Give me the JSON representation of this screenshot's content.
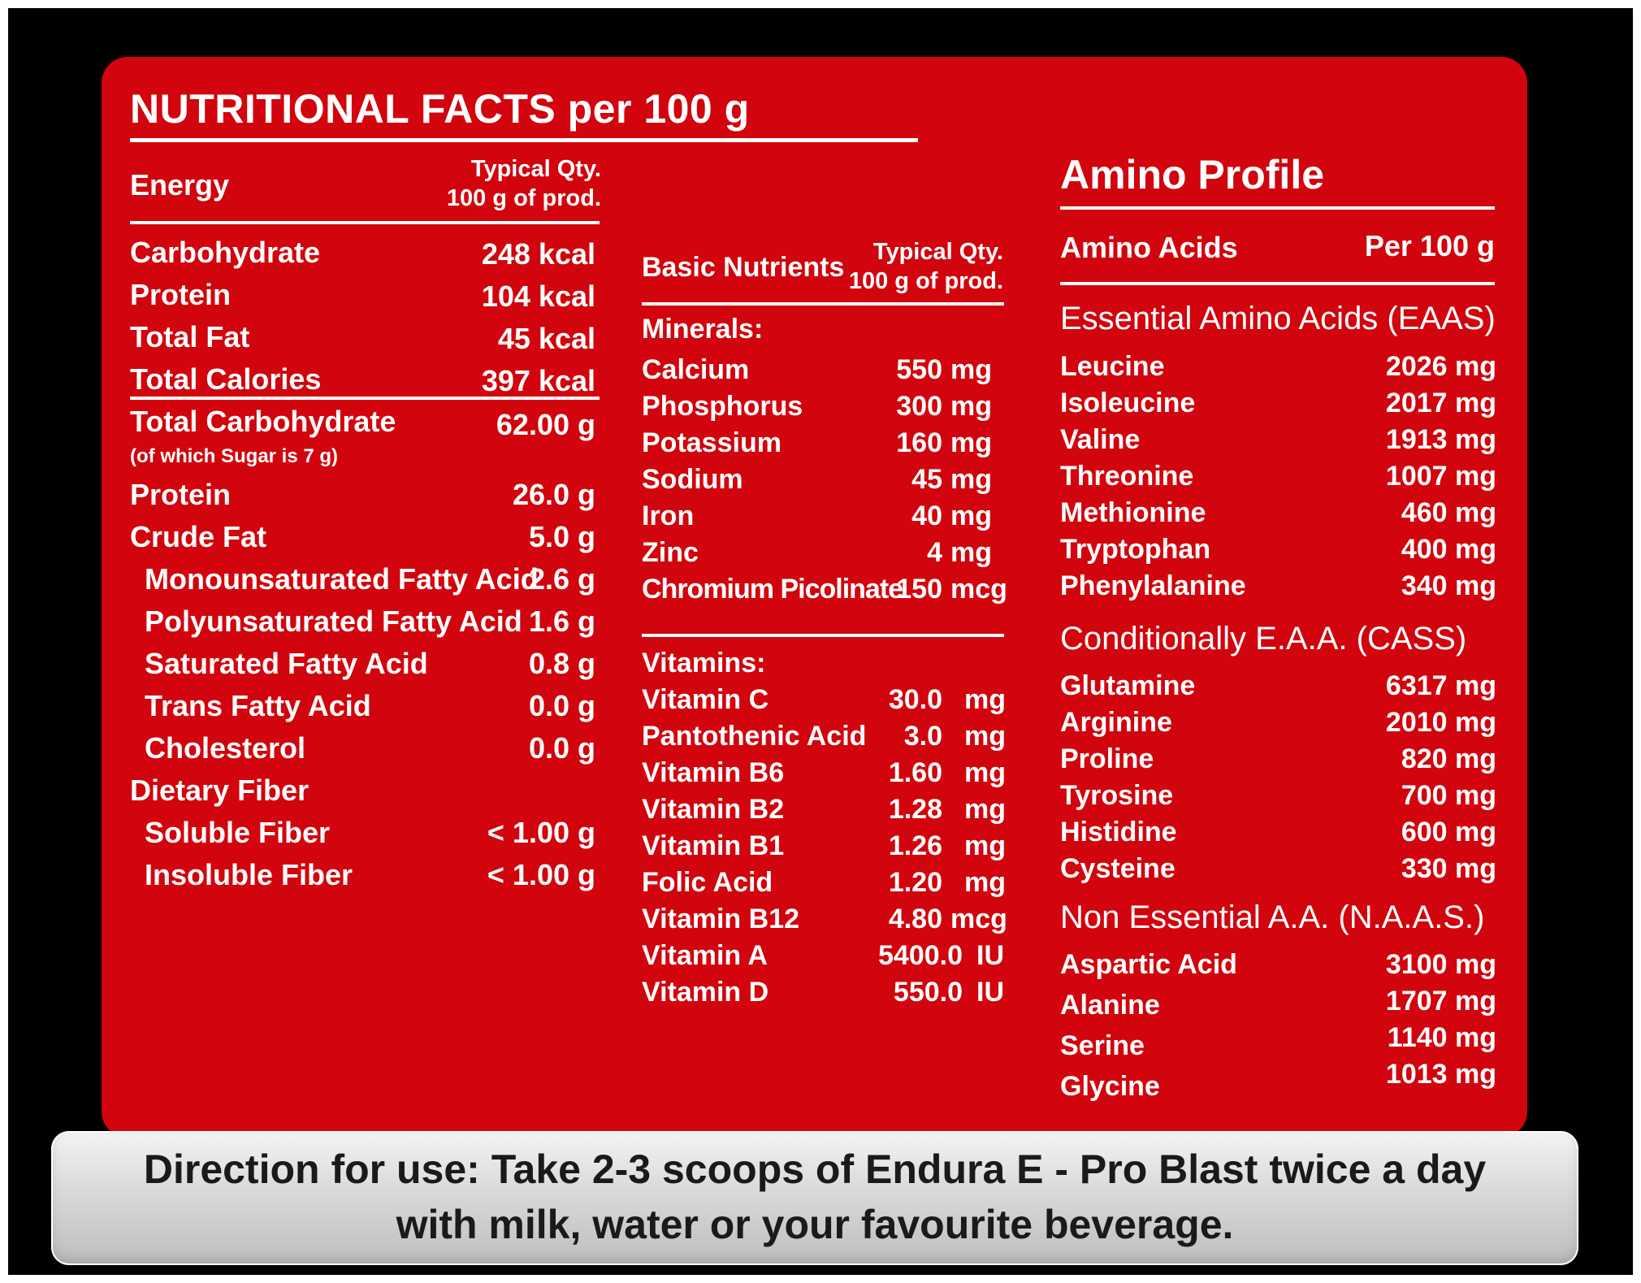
{
  "title": "NUTRITIONAL FACTS per 100 g",
  "col1": {
    "header_label": "Energy",
    "header_qty_line1": "Typical Qty.",
    "header_qty_line2": "100 g of prod.",
    "energy": [
      {
        "label": "Carbohydrate",
        "value": "248 kcal"
      },
      {
        "label": "Protein",
        "value": "104 kcal"
      },
      {
        "label": "Total Fat",
        "value": "45 kcal"
      },
      {
        "label": "Total Calories",
        "value": "397 kcal"
      }
    ],
    "total_carb_label": "Total Carbohydrate",
    "total_carb_value": "62.00 g",
    "sugar_note": "(of which Sugar is 7 g)",
    "rows": [
      {
        "label": "Protein",
        "value": "26.0 g"
      },
      {
        "label": "Crude Fat",
        "value": "5.0 g"
      },
      {
        "label": "Monounsaturated Fatty Acid",
        "value": "2.6 g"
      },
      {
        "label": "Polyunsaturated Fatty Acid",
        "value": "1.6 g"
      },
      {
        "label": "Saturated Fatty Acid",
        "value": "0.8 g"
      },
      {
        "label": "Trans Fatty Acid",
        "value": "0.0 g"
      },
      {
        "label": "Cholesterol",
        "value": "0.0 g"
      },
      {
        "label": "Dietary Fiber",
        "value": ""
      },
      {
        "label": "Soluble Fiber",
        "value": "< 1.00 g"
      },
      {
        "label": "Insoluble Fiber",
        "value": "< 1.00 g"
      }
    ]
  },
  "col2": {
    "header_label": "Basic Nutrients",
    "header_qty_line1": "Typical Qty.",
    "header_qty_line2": "100 g of prod.",
    "minerals_label": "Minerals:",
    "minerals": [
      {
        "label": "Calcium",
        "value": "550",
        "unit": "mg"
      },
      {
        "label": "Phosphorus",
        "value": "300",
        "unit": "mg"
      },
      {
        "label": "Potassium",
        "value": "160",
        "unit": "mg"
      },
      {
        "label": "Sodium",
        "value": "45",
        "unit": "mg"
      },
      {
        "label": "Iron",
        "value": "40",
        "unit": "mg"
      },
      {
        "label": "Zinc",
        "value": "4",
        "unit": "mg"
      },
      {
        "label": "Chromium Picolinate",
        "value": "150",
        "unit": "mcg"
      }
    ],
    "vitamins_label": "Vitamins:",
    "vitamins": [
      {
        "label": "Vitamin C",
        "value": "30.0",
        "unit": "mg"
      },
      {
        "label": "Pantothenic Acid",
        "value": "3.0",
        "unit": "mg"
      },
      {
        "label": "Vitamin B6",
        "value": "1.60",
        "unit": "mg"
      },
      {
        "label": "Vitamin B2",
        "value": "1.28",
        "unit": "mg"
      },
      {
        "label": "Vitamin B1",
        "value": "1.26",
        "unit": "mg"
      },
      {
        "label": "Folic Acid",
        "value": "1.20",
        "unit": "mg"
      },
      {
        "label": "Vitamin B12",
        "value": "4.80",
        "unit": "mcg"
      },
      {
        "label": "Vitamin A",
        "value": "5400.0",
        "unit": "IU"
      },
      {
        "label": "Vitamin D",
        "value": "550.0",
        "unit": "IU"
      }
    ]
  },
  "col3": {
    "heading": "Amino Profile",
    "header_label": "Amino Acids",
    "header_qty": "Per 100 g",
    "eaas_label": "Essential Amino Acids (EAAS)",
    "eaas": [
      {
        "label": "Leucine",
        "value": "2026 mg"
      },
      {
        "label": "Isoleucine",
        "value": "2017 mg"
      },
      {
        "label": "Valine",
        "value": "1913 mg"
      },
      {
        "label": "Threonine",
        "value": "1007 mg"
      },
      {
        "label": "Methionine",
        "value": "460 mg"
      },
      {
        "label": "Tryptophan",
        "value": "400 mg"
      },
      {
        "label": "Phenylalanine",
        "value": "340 mg"
      }
    ],
    "cass_label": "Conditionally E.A.A. (CASS)",
    "cass": [
      {
        "label": "Glutamine",
        "value": "6317 mg"
      },
      {
        "label": "Arginine",
        "value": "2010 mg"
      },
      {
        "label": "Proline",
        "value": "820 mg"
      },
      {
        "label": "Tyrosine",
        "value": "700 mg"
      },
      {
        "label": "Histidine",
        "value": "600 mg"
      },
      {
        "label": "Cysteine",
        "value": "330 mg"
      }
    ],
    "naas_label": "Non Essential A.A. (N.A.A.S.)",
    "naas": [
      {
        "label": "Aspartic Acid",
        "value": "3100 mg"
      },
      {
        "label": "Alanine",
        "value": "1707 mg"
      },
      {
        "label": "Serine",
        "value": "1140 mg"
      },
      {
        "label": "Glycine",
        "value": "1013 mg"
      }
    ]
  },
  "direction": {
    "line1": "Direction for use: Take 2-3 scoops of Endura E - Pro Blast twice a day",
    "line2": "with milk, water or your favourite beverage."
  },
  "colors": {
    "panel": "#d2040d",
    "frame": "#000000",
    "banner": "#d9d9d9"
  }
}
